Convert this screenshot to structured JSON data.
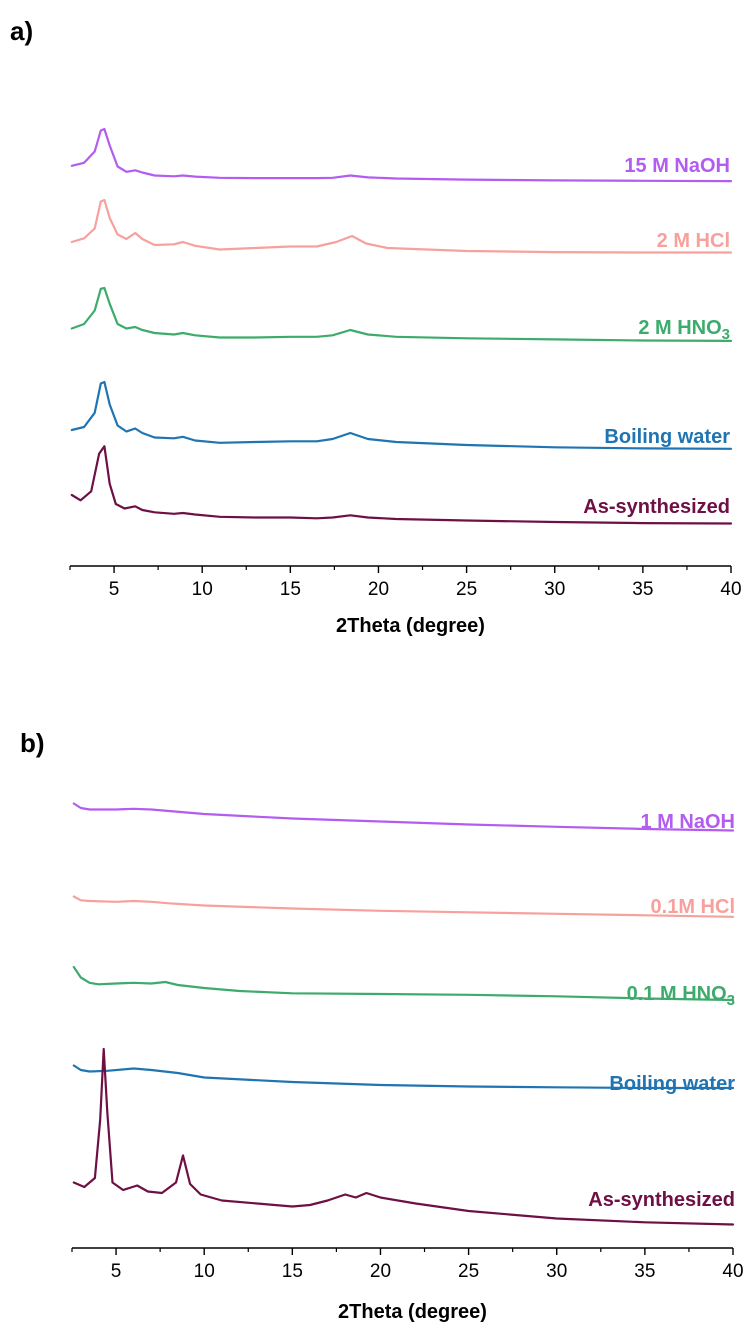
{
  "colors": {
    "naoh": "#b35cf0",
    "hcl": "#f7a09c",
    "hno3": "#3dab6b",
    "water": "#1f74b1",
    "as": "#6e1044"
  },
  "chart_data": [
    {
      "type": "line",
      "panel": "a",
      "panel_paren": ")",
      "xlabel": "2Theta (degree)",
      "ylabel": "",
      "xlim": [
        2.5,
        40
      ],
      "xticks": [
        5,
        10,
        15,
        20,
        25,
        30,
        35,
        40
      ],
      "y_axis_visible": false,
      "grid": false,
      "series": [
        {
          "name": "15 M NaOH",
          "name_main": "15 M NaOH",
          "name_sub": "",
          "color_key": "naoh",
          "x": [
            2.6,
            3.3,
            3.9,
            4.25,
            4.45,
            4.75,
            5.2,
            5.7,
            6.2,
            6.6,
            7.3,
            8.4,
            8.9,
            9.6,
            11,
            13,
            15,
            16.5,
            17.4,
            18.4,
            19.4,
            21,
            25,
            30,
            35,
            40
          ],
          "y": [
            0.23,
            0.27,
            0.42,
            0.7,
            0.72,
            0.5,
            0.22,
            0.15,
            0.17,
            0.14,
            0.1,
            0.09,
            0.1,
            0.085,
            0.07,
            0.065,
            0.065,
            0.065,
            0.07,
            0.1,
            0.075,
            0.06,
            0.045,
            0.035,
            0.03,
            0.025
          ]
        },
        {
          "name": "2 M HCl",
          "name_main": "2 M HCl",
          "name_sub": "",
          "color_key": "hcl",
          "x": [
            2.6,
            3.3,
            3.9,
            4.25,
            4.45,
            4.75,
            5.2,
            5.7,
            6.2,
            6.6,
            7.3,
            8.4,
            8.9,
            9.6,
            11,
            13,
            15,
            16.5,
            17.6,
            18.5,
            19.3,
            20.5,
            25,
            30,
            35,
            40
          ],
          "y": [
            0.2,
            0.25,
            0.38,
            0.74,
            0.76,
            0.52,
            0.3,
            0.24,
            0.32,
            0.24,
            0.16,
            0.17,
            0.2,
            0.15,
            0.1,
            0.12,
            0.14,
            0.14,
            0.2,
            0.28,
            0.18,
            0.12,
            0.08,
            0.065,
            0.06,
            0.06
          ]
        },
        {
          "name": "2 M HNO3",
          "name_main": "2 M HNO",
          "name_sub": "3",
          "color_key": "hno3",
          "x": [
            2.6,
            3.3,
            3.9,
            4.25,
            4.45,
            4.75,
            5.2,
            5.7,
            6.2,
            6.6,
            7.3,
            8.4,
            8.9,
            9.6,
            11,
            13,
            15,
            16.5,
            17.4,
            18.4,
            19.4,
            21,
            25,
            30,
            35,
            40
          ],
          "y": [
            0.22,
            0.28,
            0.46,
            0.75,
            0.76,
            0.55,
            0.28,
            0.22,
            0.24,
            0.2,
            0.16,
            0.14,
            0.16,
            0.13,
            0.1,
            0.1,
            0.11,
            0.11,
            0.13,
            0.2,
            0.14,
            0.11,
            0.09,
            0.075,
            0.06,
            0.055
          ]
        },
        {
          "name": "Boiling water",
          "name_main": "Boiling water",
          "name_sub": "",
          "color_key": "water",
          "x": [
            2.6,
            3.3,
            3.9,
            4.25,
            4.45,
            4.75,
            5.2,
            5.7,
            6.2,
            6.6,
            7.3,
            8.4,
            8.9,
            9.6,
            11,
            13,
            15,
            16.5,
            17.4,
            18.4,
            19.4,
            21,
            25,
            30,
            35,
            40
          ],
          "y": [
            0.32,
            0.36,
            0.55,
            0.94,
            0.96,
            0.66,
            0.38,
            0.3,
            0.34,
            0.28,
            0.22,
            0.21,
            0.23,
            0.18,
            0.15,
            0.16,
            0.17,
            0.17,
            0.2,
            0.28,
            0.2,
            0.16,
            0.12,
            0.09,
            0.075,
            0.07
          ]
        },
        {
          "name": "As-synthesized",
          "name_main": "As-synthesized",
          "name_sub": "",
          "color_key": "as",
          "x": [
            2.6,
            3.1,
            3.7,
            4.15,
            4.45,
            4.75,
            5.1,
            5.6,
            6.2,
            6.6,
            7.3,
            8.4,
            8.9,
            9.6,
            11,
            13,
            15,
            16.5,
            17.4,
            18.4,
            19.4,
            21,
            25,
            30,
            35,
            40
          ],
          "y": [
            0.4,
            0.33,
            0.45,
            0.95,
            1.05,
            0.55,
            0.28,
            0.22,
            0.25,
            0.2,
            0.17,
            0.15,
            0.16,
            0.14,
            0.11,
            0.1,
            0.1,
            0.09,
            0.1,
            0.13,
            0.1,
            0.08,
            0.06,
            0.04,
            0.025,
            0.02
          ]
        }
      ]
    },
    {
      "type": "line",
      "panel": "b",
      "panel_paren": ")",
      "xlabel": "2Theta (degree)",
      "ylabel": "",
      "xlim": [
        2.5,
        40
      ],
      "xticks": [
        5,
        10,
        15,
        20,
        25,
        30,
        35,
        40
      ],
      "y_axis_visible": false,
      "grid": false,
      "series": [
        {
          "name": "1 M NaOH",
          "name_main": "1 M NaOH",
          "name_sub": "",
          "color_key": "naoh",
          "x": [
            2.6,
            3.0,
            3.5,
            5,
            6,
            7,
            8,
            10,
            15,
            20,
            25,
            30,
            35,
            40
          ],
          "y": [
            0.23,
            0.2,
            0.19,
            0.19,
            0.195,
            0.19,
            0.18,
            0.16,
            0.13,
            0.11,
            0.09,
            0.075,
            0.06,
            0.05
          ]
        },
        {
          "name": "0.1M HCl",
          "name_main": "0.1M HCl",
          "name_sub": "",
          "color_key": "hcl",
          "x": [
            2.6,
            3.0,
            3.5,
            5,
            6,
            7,
            8,
            10,
            15,
            20,
            25,
            30,
            35,
            40
          ],
          "y": [
            0.17,
            0.145,
            0.14,
            0.135,
            0.14,
            0.135,
            0.125,
            0.11,
            0.09,
            0.075,
            0.065,
            0.055,
            0.045,
            0.035
          ]
        },
        {
          "name": "0.1 M HNO3",
          "name_main": "0.1 M HNO",
          "name_sub": "3",
          "color_key": "hno3",
          "x": [
            2.6,
            3.0,
            3.5,
            4.0,
            5,
            6,
            7,
            7.8,
            8.5,
            10,
            12,
            15,
            20,
            25,
            30,
            35,
            40
          ],
          "y": [
            0.26,
            0.19,
            0.155,
            0.145,
            0.15,
            0.155,
            0.15,
            0.16,
            0.14,
            0.12,
            0.1,
            0.085,
            0.08,
            0.075,
            0.065,
            0.05,
            0.04
          ]
        },
        {
          "name": "Boiling water",
          "name_main": "Boiling water",
          "name_sub": "",
          "color_key": "water",
          "x": [
            2.6,
            3.0,
            3.5,
            4.5,
            6,
            7,
            8.5,
            10,
            15,
            20,
            25,
            30,
            35,
            40
          ],
          "y": [
            0.23,
            0.2,
            0.19,
            0.195,
            0.21,
            0.2,
            0.18,
            0.15,
            0.12,
            0.1,
            0.09,
            0.085,
            0.08,
            0.08
          ]
        },
        {
          "name": "As-synthesized",
          "name_main": "As-synthesized",
          "name_sub": "",
          "color_key": "as",
          "x": [
            2.6,
            3.2,
            3.8,
            4.1,
            4.3,
            4.5,
            4.8,
            5.4,
            6.2,
            6.8,
            7.6,
            8.4,
            8.8,
            9.2,
            9.8,
            11,
            13,
            15,
            16,
            17,
            18,
            18.6,
            19.2,
            20,
            22,
            25,
            30,
            35,
            40
          ],
          "y": [
            0.33,
            0.3,
            0.36,
            0.75,
            1.22,
            0.8,
            0.33,
            0.28,
            0.31,
            0.27,
            0.26,
            0.33,
            0.51,
            0.32,
            0.25,
            0.21,
            0.19,
            0.17,
            0.18,
            0.21,
            0.25,
            0.23,
            0.26,
            0.23,
            0.19,
            0.14,
            0.09,
            0.065,
            0.05
          ]
        }
      ]
    }
  ]
}
